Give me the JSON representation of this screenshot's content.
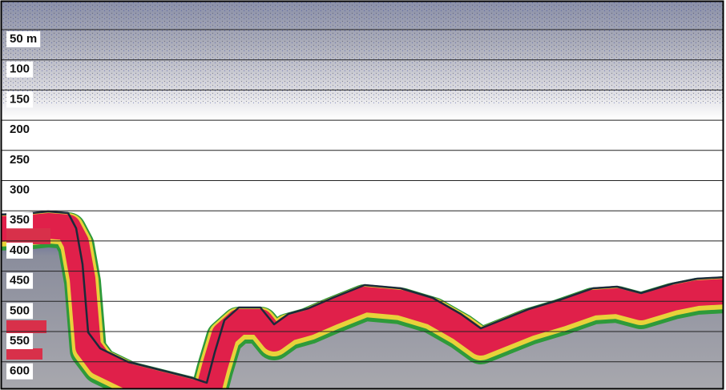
{
  "depth_labels": [
    "50 m",
    "100",
    "150",
    "200",
    "250",
    "300",
    "350",
    "400",
    "450",
    "500",
    "550",
    "600"
  ]
}
